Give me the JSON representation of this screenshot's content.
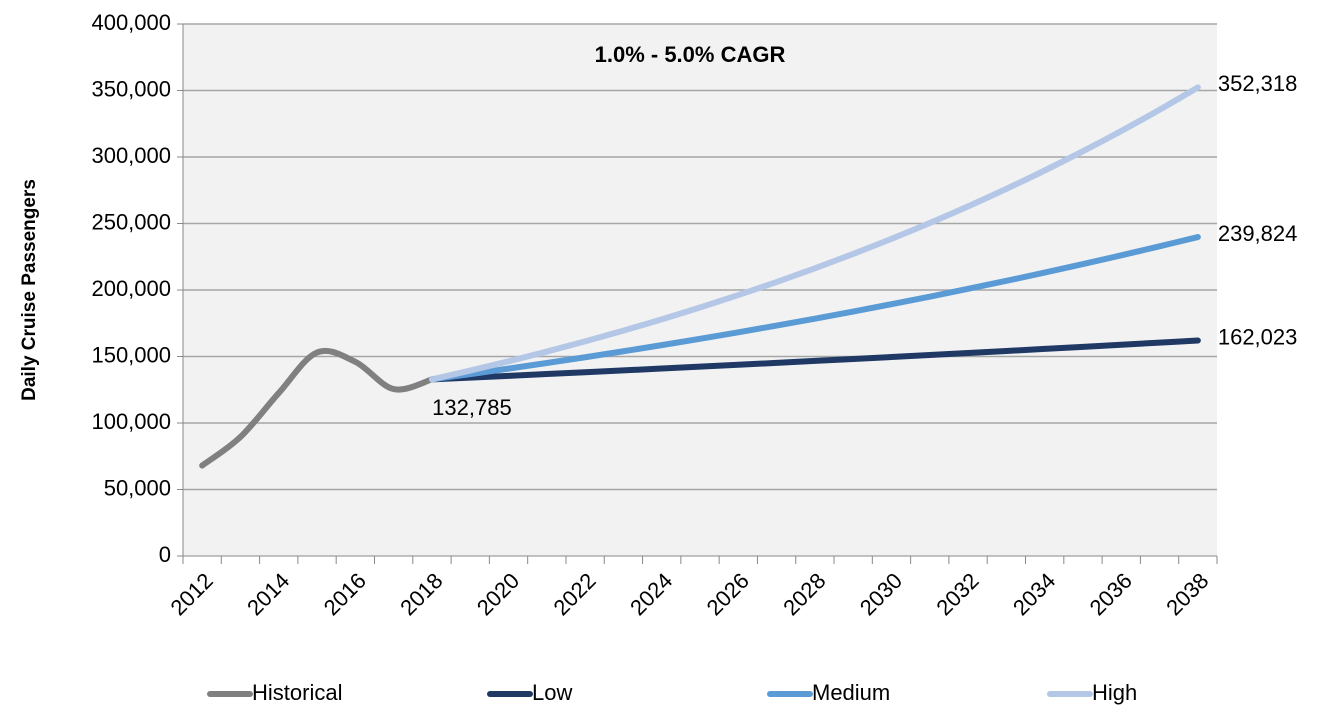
{
  "chart_data": {
    "type": "line",
    "annotation": "1.0% - 5.0% CAGR",
    "y_label": "Daily Cruise Passengers",
    "categories": [
      "2012",
      null,
      "2014",
      null,
      "2016",
      null,
      "2018",
      null,
      "2020",
      null,
      "2022",
      null,
      "2024",
      null,
      "2026",
      null,
      "2028",
      null,
      "2030",
      null,
      "2032",
      null,
      "2034",
      null,
      "2036",
      null,
      "2038"
    ],
    "series": [
      {
        "name": "Historical",
        "color": "#808080",
        "values": [
          68000,
          89500,
          122500,
          153000,
          146000,
          125500,
          132785,
          null,
          null,
          null,
          null,
          null,
          null,
          null,
          null,
          null,
          null,
          null,
          null,
          null,
          null,
          null,
          null,
          null,
          null,
          null,
          null
        ],
        "value_labels": [
          null,
          null,
          null,
          null,
          null,
          null,
          "132,785",
          null,
          null,
          null,
          null,
          null,
          null,
          null,
          null,
          null,
          null,
          null,
          null,
          null,
          null,
          null,
          null,
          null,
          null,
          null,
          null
        ]
      },
      {
        "name": "Low",
        "color": "#1f3864",
        "values": [
          null,
          null,
          null,
          null,
          null,
          null,
          132785,
          134113,
          135454,
          136809,
          138177,
          139559,
          140954,
          142364,
          143787,
          145225,
          146678,
          148144,
          149626,
          151122,
          152633,
          154160,
          155701,
          157258,
          158831,
          160419,
          162023
        ],
        "value_labels": [
          null,
          null,
          null,
          null,
          null,
          null,
          null,
          null,
          null,
          null,
          null,
          null,
          null,
          null,
          null,
          null,
          null,
          null,
          null,
          null,
          null,
          null,
          null,
          null,
          null,
          null,
          "162,023"
        ]
      },
      {
        "name": "Medium",
        "color": "#5b9bd5",
        "values": [
          null,
          null,
          null,
          null,
          null,
          null,
          132785,
          136769,
          140872,
          145098,
          149451,
          153935,
          158553,
          163309,
          168209,
          173255,
          178453,
          183806,
          189321,
          195000,
          200850,
          206876,
          213082,
          219475,
          226059,
          232841,
          239824
        ],
        "value_labels": [
          null,
          null,
          null,
          null,
          null,
          null,
          null,
          null,
          null,
          null,
          null,
          null,
          null,
          null,
          null,
          null,
          null,
          null,
          null,
          null,
          null,
          null,
          null,
          null,
          null,
          null,
          "239,824"
        ]
      },
      {
        "name": "High",
        "color": "#b4c7e7",
        "values": [
          null,
          null,
          null,
          null,
          null,
          null,
          132785,
          139424,
          146395,
          153715,
          161401,
          169471,
          177945,
          186842,
          196184,
          205993,
          216293,
          227108,
          238463,
          250386,
          262905,
          276051,
          289853,
          304346,
          319563,
          335541,
          352318
        ],
        "value_labels": [
          null,
          null,
          null,
          null,
          null,
          null,
          null,
          null,
          null,
          null,
          null,
          null,
          null,
          null,
          null,
          null,
          null,
          null,
          null,
          null,
          null,
          null,
          null,
          null,
          null,
          null,
          "352,318"
        ]
      }
    ],
    "ylim": [
      0,
      400000
    ],
    "yticks": [
      0,
      {
        "value": 50000,
        "label": "50,000"
      },
      {
        "value": 100000,
        "label": "100,000"
      },
      {
        "value": 150000,
        "label": "150,000"
      },
      {
        "value": 200000,
        "label": "200,000"
      },
      {
        "value": 250000,
        "label": "250,000"
      },
      {
        "value": 300000,
        "label": "300,000"
      },
      {
        "value": 350000,
        "label": "350,000"
      },
      {
        "value": 400000,
        "label": "400,000"
      }
    ],
    "grid": true,
    "legend": "bottom"
  }
}
